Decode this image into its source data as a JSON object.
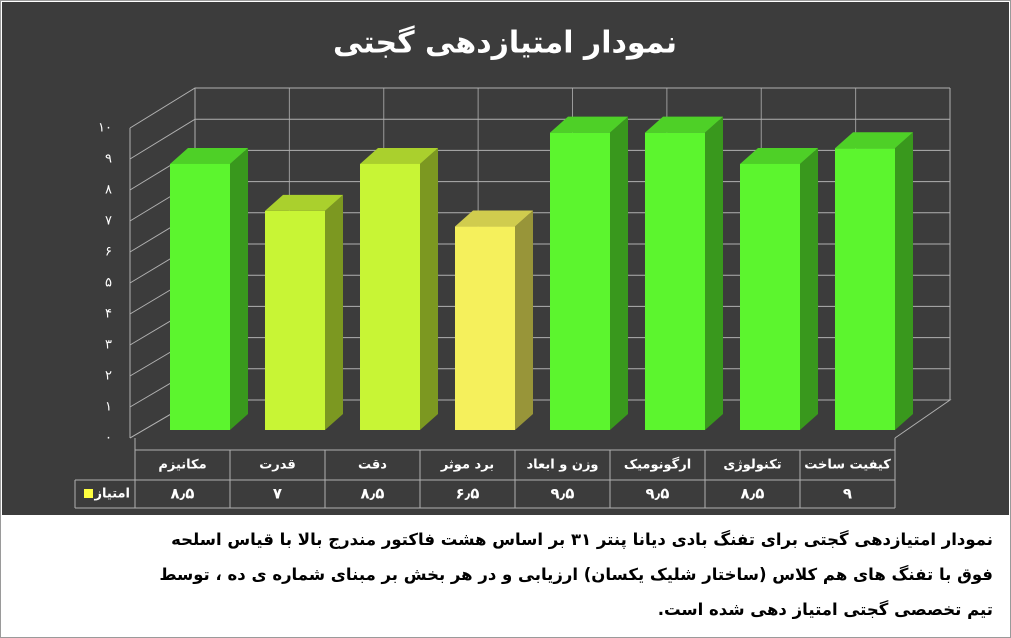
{
  "chart_data": {
    "type": "bar3d",
    "title": "نمودار امتیازدهی گجتی",
    "categories": [
      "مکانیزم",
      "قدرت",
      "دقت",
      "برد موثر",
      "وزن و ابعاد",
      "ارگونومیک",
      "تکنولوژی",
      "کیفیت ساخت"
    ],
    "values": [
      8.5,
      7,
      8.5,
      6.5,
      9.5,
      9.5,
      8.5,
      9
    ],
    "value_labels": [
      "۸٫۵",
      "۷",
      "۸٫۵",
      "۶٫۵",
      "۹٫۵",
      "۹٫۵",
      "۸٫۵",
      "۹"
    ],
    "colors": [
      "#5cf52e",
      "#c8f535",
      "#c8f535",
      "#f5f05c",
      "#5cf52e",
      "#5cf52e",
      "#5cf52e",
      "#5cf52e"
    ],
    "series_name": "امتیاز",
    "legend_color": "#ffff40",
    "ylim": [
      0,
      10
    ],
    "yticks": [
      {
        "value": 0,
        "label": "۰"
      },
      {
        "value": 1,
        "label": "۱"
      },
      {
        "value": 2,
        "label": "۲"
      },
      {
        "value": 3,
        "label": "۳"
      },
      {
        "value": 4,
        "label": "۴"
      },
      {
        "value": 5,
        "label": "۵"
      },
      {
        "value": 6,
        "label": "۶"
      },
      {
        "value": 7,
        "label": "۷"
      },
      {
        "value": 8,
        "label": "۸"
      },
      {
        "value": 9,
        "label": "۹"
      },
      {
        "value": 10,
        "label": "۱۰"
      }
    ],
    "grid": true
  },
  "note_lines": [
    "نمودار امتیازدهی گجتی برای تفنگ بادی دیانا پنتر ۳۱ بر اساس هشت فاکتور مندرج بالا با قیاس اسلحه",
    "فوق با تفنگ های هم کلاس (ساختار شلیک یکسان) ارزیابی و در هر بخش بر مبنای شماره ی ده ، توسط",
    "تیم تخصصی گجتی امتیاز دهی شده است."
  ]
}
